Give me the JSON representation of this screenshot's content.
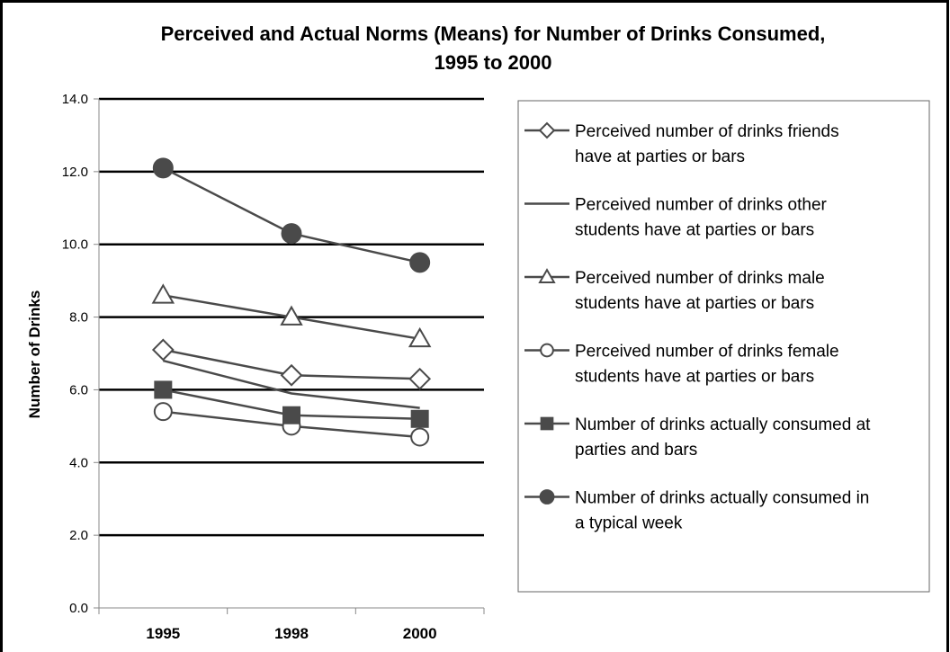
{
  "chart_data": {
    "type": "line",
    "title": [
      "Perceived and Actual Norms (Means) for Number of Drinks Consumed,",
      "1995 to 2000"
    ],
    "ylabel": "Number of Drinks",
    "xlabel": "",
    "categories": [
      "1995",
      "1998",
      "2000"
    ],
    "ylim": [
      0,
      14
    ],
    "yticks": [
      "0.0",
      "2.0",
      "4.0",
      "6.0",
      "8.0",
      "10.0",
      "12.0",
      "14.0"
    ],
    "grid": "horizontal",
    "legend_position": "right",
    "colors": {
      "line": "#4a4a4a",
      "grid": "#000000",
      "axis": "#888888"
    },
    "series": [
      {
        "name": [
          "Perceived number of drinks friends",
          "have at parties or bars"
        ],
        "marker": "diamond",
        "values": [
          7.1,
          6.4,
          6.3
        ]
      },
      {
        "name": [
          "Perceived number of drinks other",
          "students have at parties or bars"
        ],
        "marker": "none",
        "values": [
          6.8,
          5.9,
          5.5
        ]
      },
      {
        "name": [
          "Perceived number of drinks male",
          "students have at parties or bars"
        ],
        "marker": "triangle",
        "values": [
          8.6,
          8.0,
          7.4
        ]
      },
      {
        "name": [
          "Perceived number of drinks female",
          "students have at parties or bars"
        ],
        "marker": "circle-open",
        "values": [
          5.4,
          5.0,
          4.7
        ]
      },
      {
        "name": [
          "Number of drinks actually consumed at",
          "parties and bars"
        ],
        "marker": "square",
        "values": [
          6.0,
          5.3,
          5.2
        ]
      },
      {
        "name": [
          "Number of drinks actually consumed in",
          "a typical week"
        ],
        "marker": "circle-filled",
        "values": [
          12.1,
          10.3,
          9.5
        ]
      }
    ]
  }
}
